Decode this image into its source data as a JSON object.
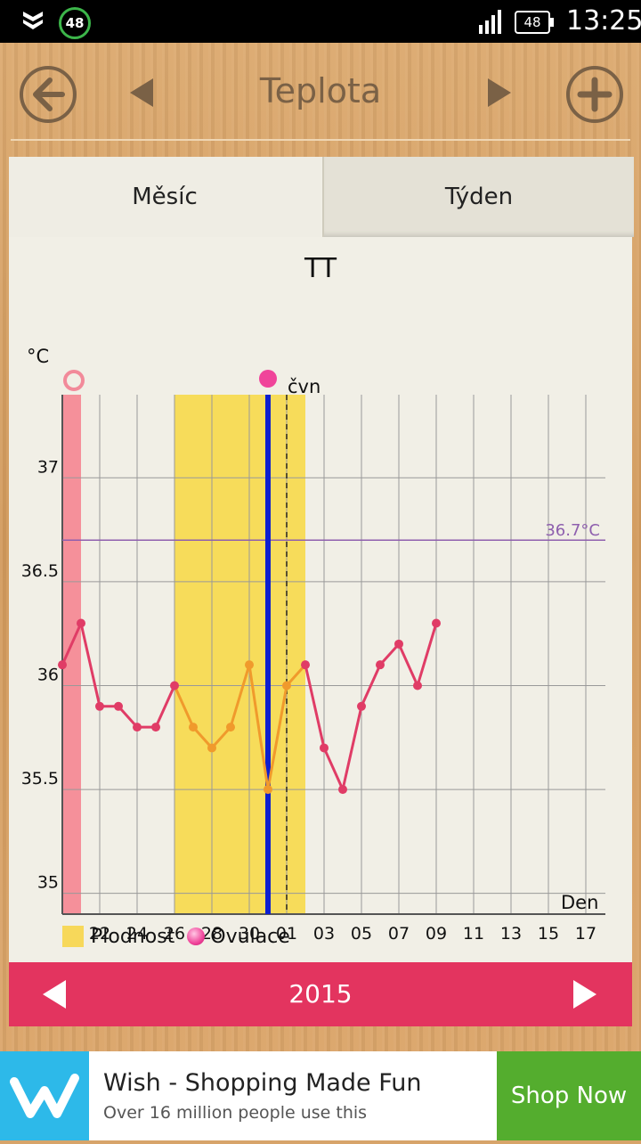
{
  "status_bar": {
    "badge": "48",
    "battery": "48",
    "time": "13:25"
  },
  "header": {
    "title": "Teplota"
  },
  "tabs": [
    {
      "label": "Měsíc"
    },
    {
      "label": "Týden"
    }
  ],
  "chart_data": {
    "type": "line",
    "title": "TT",
    "ylabel": "°C",
    "xlabel": "Den",
    "ylim": [
      34.9,
      37.4
    ],
    "yticks": [
      "35",
      "35.5",
      "36",
      "36.5",
      "37"
    ],
    "xtick_labels": [
      "22",
      "24",
      "26",
      "28",
      "30",
      "01",
      "03",
      "05",
      "07",
      "09",
      "11",
      "13",
      "15",
      "17"
    ],
    "threshold": {
      "value": 36.7,
      "label": "36.7°C",
      "color": "#8e5fae"
    },
    "month_marker_label": "čvn",
    "series": [
      {
        "x": [
          20,
          21,
          22,
          23,
          24,
          25,
          26,
          27,
          28,
          29,
          30,
          31,
          32,
          33,
          34,
          35,
          36,
          37,
          38,
          39,
          40
        ],
        "y": [
          36.1,
          36.3,
          35.9,
          35.9,
          35.8,
          35.8,
          36.0,
          35.8,
          35.7,
          35.8,
          36.1,
          35.5,
          36.0,
          36.1,
          35.7,
          35.5,
          35.9,
          36.1,
          36.2,
          36.0,
          36.3
        ]
      }
    ],
    "fertile_window": [
      26,
      33
    ],
    "ovulation_day": 31,
    "period_days": [
      20,
      21
    ],
    "colors": {
      "line": "#e03c66",
      "fertile_line": "#f09a2c",
      "fertile": "#f7dc5a",
      "ovulation": "#0d1fd0",
      "period": "#f5909a"
    }
  },
  "legend": {
    "fertility": "Plodnost",
    "ovulation": "Ovulace"
  },
  "year_bar": {
    "year": "2015"
  },
  "ad": {
    "title": "Wish - Shopping Made Fun",
    "subtitle": "Over 16 million people use this",
    "button": "Shop Now"
  }
}
